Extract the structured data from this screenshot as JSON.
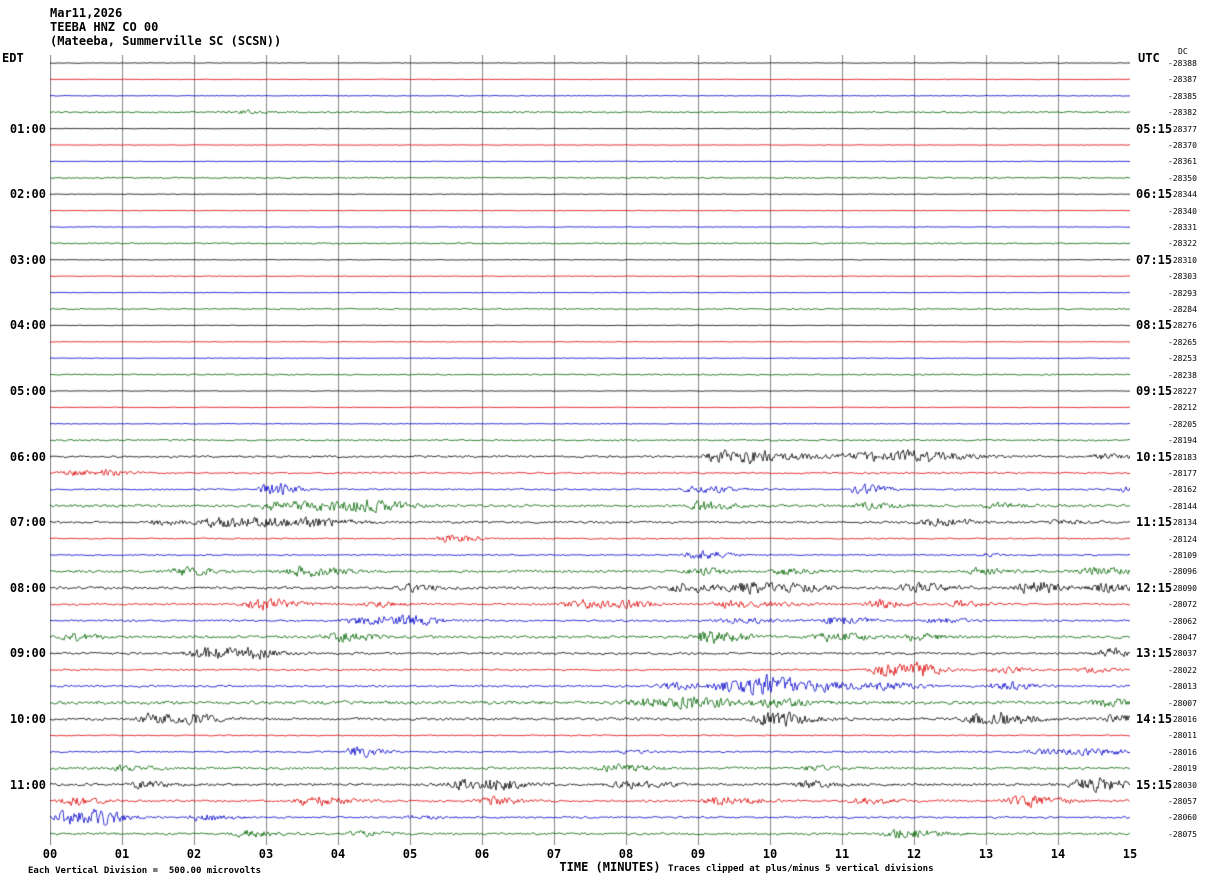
{
  "title": {
    "date": "Mar11,2026",
    "station": "TEEBA HNZ CO 00",
    "location": "(Mateeba, Summerville SC (SCSN))"
  },
  "axes": {
    "left_label": "EDT",
    "right_label": "UTC",
    "dc_label": "DC",
    "x_label": "TIME (MINUTES)",
    "x_ticks": [
      "00",
      "01",
      "02",
      "03",
      "04",
      "05",
      "06",
      "07",
      "08",
      "09",
      "10",
      "11",
      "12",
      "13",
      "14",
      "15"
    ]
  },
  "footer": {
    "left": "Each Vertical Division =  500.00 microvolts",
    "right": "Traces clipped at plus/minus 5 vertical divisions"
  },
  "chart_data": {
    "type": "line",
    "subtype": "seismogram-helicorder",
    "x_range_minutes": [
      0,
      15
    ],
    "minutes_per_row": 15,
    "grid": true,
    "grid_color": "#888888",
    "trace_colors": [
      "#000000",
      "#dd0000",
      "#0000cc",
      "#006600"
    ],
    "clip_divisions": 5,
    "microvolts_per_division": 500.0,
    "rows": [
      {
        "edt": "",
        "utc": "",
        "dc": "-28388",
        "n": 0.35,
        "ev": []
      },
      {
        "edt": "",
        "utc": "",
        "dc": "-28387",
        "n": 0.35,
        "ev": []
      },
      {
        "edt": "",
        "utc": "",
        "dc": "-28385",
        "n": 0.4,
        "ev": []
      },
      {
        "edt": "",
        "utc": "",
        "dc": "-28382",
        "n": 0.9,
        "ev": [
          {
            "m": 2.6,
            "a": 1.5,
            "w": 0.5
          }
        ]
      },
      {
        "edt": "01:00",
        "utc": "05:15",
        "dc": "-28377",
        "n": 0.35,
        "ev": []
      },
      {
        "edt": "",
        "utc": "",
        "dc": "-28370",
        "n": 0.35,
        "ev": []
      },
      {
        "edt": "",
        "utc": "",
        "dc": "-28361",
        "n": 0.35,
        "ev": []
      },
      {
        "edt": "",
        "utc": "",
        "dc": "-28350",
        "n": 0.8,
        "ev": []
      },
      {
        "edt": "02:00",
        "utc": "06:15",
        "dc": "-28344",
        "n": 0.35,
        "ev": []
      },
      {
        "edt": "",
        "utc": "",
        "dc": "-28340",
        "n": 0.35,
        "ev": []
      },
      {
        "edt": "",
        "utc": "",
        "dc": "-28331",
        "n": 0.35,
        "ev": []
      },
      {
        "edt": "",
        "utc": "",
        "dc": "-28322",
        "n": 0.8,
        "ev": []
      },
      {
        "edt": "03:00",
        "utc": "07:15",
        "dc": "-28310",
        "n": 0.35,
        "ev": []
      },
      {
        "edt": "",
        "utc": "",
        "dc": "-28303",
        "n": 0.35,
        "ev": []
      },
      {
        "edt": "",
        "utc": "",
        "dc": "-28293",
        "n": 0.35,
        "ev": []
      },
      {
        "edt": "",
        "utc": "",
        "dc": "-28284",
        "n": 0.8,
        "ev": []
      },
      {
        "edt": "04:00",
        "utc": "08:15",
        "dc": "-28276",
        "n": 0.35,
        "ev": []
      },
      {
        "edt": "",
        "utc": "",
        "dc": "-28265",
        "n": 0.35,
        "ev": []
      },
      {
        "edt": "",
        "utc": "",
        "dc": "-28253",
        "n": 0.35,
        "ev": []
      },
      {
        "edt": "",
        "utc": "",
        "dc": "-28238",
        "n": 0.85,
        "ev": []
      },
      {
        "edt": "05:00",
        "utc": "09:15",
        "dc": "-28227",
        "n": 0.35,
        "ev": []
      },
      {
        "edt": "",
        "utc": "",
        "dc": "-28212",
        "n": 0.35,
        "ev": []
      },
      {
        "edt": "",
        "utc": "",
        "dc": "-28205",
        "n": 0.4,
        "ev": []
      },
      {
        "edt": "",
        "utc": "",
        "dc": "-28194",
        "n": 0.9,
        "ev": []
      },
      {
        "edt": "06:00",
        "utc": "10:15",
        "dc": "-28183",
        "n": 1.3,
        "ev": [
          {
            "m": 9.3,
            "a": 6,
            "w": 0.5
          },
          {
            "m": 9.8,
            "a": 4,
            "w": 0.6
          },
          {
            "m": 11.3,
            "a": 5,
            "w": 0.8
          },
          {
            "m": 12.0,
            "a": 4,
            "w": 0.5
          },
          {
            "m": 14.6,
            "a": 3,
            "w": 0.3
          }
        ]
      },
      {
        "edt": "",
        "utc": "",
        "dc": "-28177",
        "n": 1.0,
        "ev": [
          {
            "m": 0.3,
            "a": 3,
            "w": 0.3
          },
          {
            "m": 0.8,
            "a": 2.5,
            "w": 0.3
          }
        ]
      },
      {
        "edt": "",
        "utc": "",
        "dc": "-28162",
        "n": 1.0,
        "ev": [
          {
            "m": 3.05,
            "a": 9,
            "w": 0.25
          },
          {
            "m": 9.0,
            "a": 4,
            "w": 0.4
          },
          {
            "m": 11.25,
            "a": 6,
            "w": 0.3
          },
          {
            "m": 14.9,
            "a": 3,
            "w": 0.2
          }
        ]
      },
      {
        "edt": "",
        "utc": "",
        "dc": "-28144",
        "n": 1.6,
        "ev": [
          {
            "m": 3.1,
            "a": 5,
            "w": 0.4
          },
          {
            "m": 3.9,
            "a": 6,
            "w": 0.6
          },
          {
            "m": 4.4,
            "a": 4,
            "w": 0.4
          },
          {
            "m": 9.05,
            "a": 6,
            "w": 0.3
          },
          {
            "m": 11.3,
            "a": 3,
            "w": 0.4
          },
          {
            "m": 13.1,
            "a": 3,
            "w": 0.3
          }
        ]
      },
      {
        "edt": "07:00",
        "utc": "11:15",
        "dc": "-28134",
        "n": 1.4,
        "ev": [
          {
            "m": 1.5,
            "a": 3,
            "w": 0.3
          },
          {
            "m": 2.3,
            "a": 6,
            "w": 0.4
          },
          {
            "m": 3.0,
            "a": 5,
            "w": 0.5
          },
          {
            "m": 3.7,
            "a": 4,
            "w": 0.4
          },
          {
            "m": 12.3,
            "a": 5,
            "w": 0.4
          },
          {
            "m": 14.0,
            "a": 2.5,
            "w": 0.3
          }
        ]
      },
      {
        "edt": "",
        "utc": "",
        "dc": "-28124",
        "n": 0.8,
        "ev": [
          {
            "m": 5.55,
            "a": 5,
            "w": 0.3
          }
        ]
      },
      {
        "edt": "",
        "utc": "",
        "dc": "-28109",
        "n": 0.8,
        "ev": [
          {
            "m": 9.0,
            "a": 5,
            "w": 0.35
          },
          {
            "m": 13.0,
            "a": 2,
            "w": 0.2
          }
        ]
      },
      {
        "edt": "",
        "utc": "",
        "dc": "-28096",
        "n": 1.6,
        "ev": [
          {
            "m": 1.85,
            "a": 5,
            "w": 0.3
          },
          {
            "m": 3.5,
            "a": 6,
            "w": 0.4
          },
          {
            "m": 9.0,
            "a": 4,
            "w": 0.3
          },
          {
            "m": 10.2,
            "a": 3.5,
            "w": 0.3
          },
          {
            "m": 12.9,
            "a": 3.5,
            "w": 0.3
          },
          {
            "m": 14.5,
            "a": 4,
            "w": 0.4
          }
        ]
      },
      {
        "edt": "08:00",
        "utc": "12:15",
        "dc": "-28090",
        "n": 1.6,
        "ev": [
          {
            "m": 5.0,
            "a": 4,
            "w": 0.3
          },
          {
            "m": 8.8,
            "a": 6,
            "w": 0.4
          },
          {
            "m": 9.7,
            "a": 7,
            "w": 0.4
          },
          {
            "m": 10.4,
            "a": 4,
            "w": 0.3
          },
          {
            "m": 12.0,
            "a": 5,
            "w": 0.4
          },
          {
            "m": 13.6,
            "a": 9,
            "w": 0.3
          },
          {
            "m": 14.6,
            "a": 5,
            "w": 0.3
          }
        ]
      },
      {
        "edt": "",
        "utc": "",
        "dc": "-28072",
        "n": 1.2,
        "ev": [
          {
            "m": 2.9,
            "a": 7,
            "w": 0.4
          },
          {
            "m": 4.5,
            "a": 3,
            "w": 0.3
          },
          {
            "m": 7.3,
            "a": 5,
            "w": 0.4
          },
          {
            "m": 8.0,
            "a": 4,
            "w": 0.3
          },
          {
            "m": 9.5,
            "a": 5,
            "w": 0.5
          },
          {
            "m": 11.5,
            "a": 5,
            "w": 0.3
          },
          {
            "m": 12.6,
            "a": 4,
            "w": 0.3
          }
        ]
      },
      {
        "edt": "",
        "utc": "",
        "dc": "-28062",
        "n": 1.2,
        "ev": [
          {
            "m": 4.4,
            "a": 6,
            "w": 0.5
          },
          {
            "m": 5.0,
            "a": 4,
            "w": 0.3
          },
          {
            "m": 9.5,
            "a": 3,
            "w": 0.5
          },
          {
            "m": 10.9,
            "a": 6,
            "w": 0.3
          },
          {
            "m": 12.3,
            "a": 3,
            "w": 0.3
          }
        ]
      },
      {
        "edt": "",
        "utc": "",
        "dc": "-28047",
        "n": 1.6,
        "ev": [
          {
            "m": 0.3,
            "a": 4,
            "w": 0.3
          },
          {
            "m": 4.0,
            "a": 5,
            "w": 0.4
          },
          {
            "m": 9.1,
            "a": 7,
            "w": 0.4
          },
          {
            "m": 10.8,
            "a": 5,
            "w": 0.4
          },
          {
            "m": 12.0,
            "a": 4,
            "w": 0.3
          }
        ]
      },
      {
        "edt": "09:00",
        "utc": "13:15",
        "dc": "-28037",
        "n": 1.4,
        "ev": [
          {
            "m": 2.2,
            "a": 7,
            "w": 0.5
          },
          {
            "m": 2.8,
            "a": 4,
            "w": 0.3
          },
          {
            "m": 14.7,
            "a": 6,
            "w": 0.3
          }
        ]
      },
      {
        "edt": "",
        "utc": "",
        "dc": "-28022",
        "n": 1.0,
        "ev": [
          {
            "m": 11.6,
            "a": 8,
            "w": 0.4
          },
          {
            "m": 12.1,
            "a": 5,
            "w": 0.3
          },
          {
            "m": 13.2,
            "a": 4,
            "w": 0.3
          },
          {
            "m": 14.4,
            "a": 3,
            "w": 0.3
          }
        ]
      },
      {
        "edt": "",
        "utc": "",
        "dc": "-28013",
        "n": 1.2,
        "ev": [
          {
            "m": 8.6,
            "a": 4,
            "w": 0.4
          },
          {
            "m": 9.5,
            "a": 10,
            "w": 0.5
          },
          {
            "m": 10.0,
            "a": 8,
            "w": 0.4
          },
          {
            "m": 10.8,
            "a": 5,
            "w": 0.4
          },
          {
            "m": 11.6,
            "a": 4,
            "w": 0.4
          },
          {
            "m": 13.2,
            "a": 6,
            "w": 0.3
          }
        ]
      },
      {
        "edt": "",
        "utc": "",
        "dc": "-28007",
        "n": 2.0,
        "ev": [
          {
            "m": 8.3,
            "a": 5,
            "w": 0.5
          },
          {
            "m": 9.0,
            "a": 5,
            "w": 0.5
          },
          {
            "m": 10.0,
            "a": 4,
            "w": 0.4
          },
          {
            "m": 14.6,
            "a": 4,
            "w": 0.3
          }
        ]
      },
      {
        "edt": "10:00",
        "utc": "14:15",
        "dc": "-28016",
        "n": 1.6,
        "ev": [
          {
            "m": 1.4,
            "a": 6,
            "w": 0.3
          },
          {
            "m": 2.0,
            "a": 5,
            "w": 0.3
          },
          {
            "m": 10.0,
            "a": 9,
            "w": 0.4
          },
          {
            "m": 12.9,
            "a": 6,
            "w": 0.4
          },
          {
            "m": 13.3,
            "a": 5,
            "w": 0.3
          },
          {
            "m": 14.8,
            "a": 5,
            "w": 0.3
          }
        ]
      },
      {
        "edt": "",
        "utc": "",
        "dc": "-28011",
        "n": 0.7,
        "ev": []
      },
      {
        "edt": "",
        "utc": "",
        "dc": "-28016",
        "n": 0.9,
        "ev": [
          {
            "m": 4.25,
            "a": 6,
            "w": 0.3
          },
          {
            "m": 8.0,
            "a": 2,
            "w": 0.3
          },
          {
            "m": 13.8,
            "a": 3,
            "w": 0.6
          },
          {
            "m": 14.5,
            "a": 3,
            "w": 0.4
          }
        ]
      },
      {
        "edt": "",
        "utc": "",
        "dc": "-28019",
        "n": 1.5,
        "ev": [
          {
            "m": 1.0,
            "a": 4,
            "w": 0.3
          },
          {
            "m": 7.8,
            "a": 4,
            "w": 0.4
          },
          {
            "m": 10.6,
            "a": 3,
            "w": 0.3
          }
        ]
      },
      {
        "edt": "11:00",
        "utc": "15:15",
        "dc": "-28030",
        "n": 1.6,
        "ev": [
          {
            "m": 1.2,
            "a": 4,
            "w": 0.3
          },
          {
            "m": 5.7,
            "a": 6,
            "w": 0.4
          },
          {
            "m": 6.2,
            "a": 5,
            "w": 0.3
          },
          {
            "m": 8.0,
            "a": 4,
            "w": 0.4
          },
          {
            "m": 10.5,
            "a": 4,
            "w": 0.3
          },
          {
            "m": 14.4,
            "a": 8,
            "w": 0.4
          }
        ]
      },
      {
        "edt": "",
        "utc": "",
        "dc": "-28057",
        "n": 1.4,
        "ev": [
          {
            "m": 0.3,
            "a": 5,
            "w": 0.3
          },
          {
            "m": 3.6,
            "a": 6,
            "w": 0.4
          },
          {
            "m": 6.1,
            "a": 5,
            "w": 0.3
          },
          {
            "m": 9.3,
            "a": 5,
            "w": 0.4
          },
          {
            "m": 11.3,
            "a": 4,
            "w": 0.3
          },
          {
            "m": 13.5,
            "a": 7,
            "w": 0.4
          }
        ]
      },
      {
        "edt": "",
        "utc": "",
        "dc": "-28060",
        "n": 1.2,
        "ev": [
          {
            "m": 0.25,
            "a": 9,
            "w": 0.4
          },
          {
            "m": 0.7,
            "a": 5,
            "w": 0.3
          },
          {
            "m": 2.1,
            "a": 4,
            "w": 0.3
          },
          {
            "m": 5.0,
            "a": 2,
            "w": 0.3
          }
        ]
      },
      {
        "edt": "",
        "utc": "",
        "dc": "-28075",
        "n": 1.4,
        "ev": [
          {
            "m": 2.7,
            "a": 4,
            "w": 0.3
          },
          {
            "m": 4.3,
            "a": 3,
            "w": 0.3
          },
          {
            "m": 11.8,
            "a": 5,
            "w": 0.4
          }
        ]
      }
    ]
  }
}
